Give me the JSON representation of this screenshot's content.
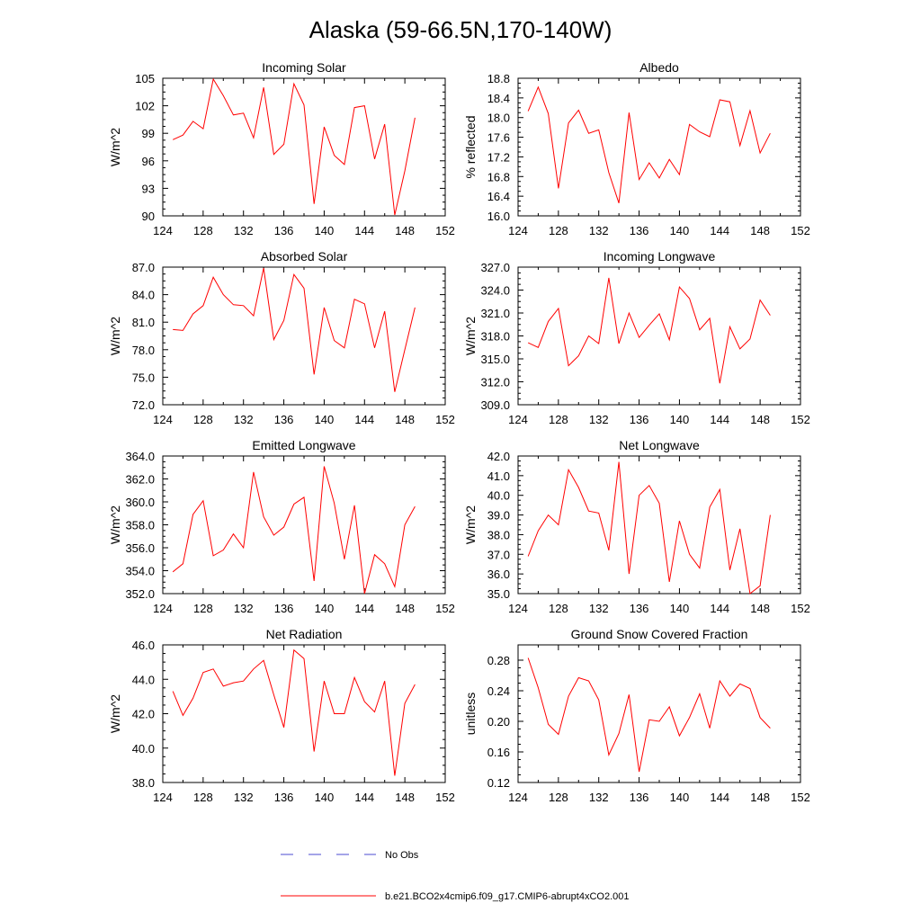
{
  "figure": {
    "title": "Alaska (59-66.5N,170-140W)"
  },
  "legend": {
    "obs_label": "No Obs",
    "obs_color": "#4b4bd0",
    "model_label": "b.e21.BCO2x4cmip6.f09_g17.CMIP6-abrupt4xCO2.001",
    "model_color": "#ff0000"
  },
  "chart_data": [
    {
      "type": "line",
      "title": "Incoming Solar",
      "ylabel": "W/m^2",
      "xlim": [
        124,
        152
      ],
      "ylim": [
        90,
        105
      ],
      "xticks": [
        124,
        128,
        132,
        136,
        140,
        144,
        148,
        152
      ],
      "yticks": [
        90,
        93,
        96,
        99,
        102,
        105
      ],
      "ydecimals": 0,
      "x": [
        125,
        126,
        127,
        128,
        129,
        130,
        131,
        132,
        133,
        134,
        135,
        136,
        137,
        138,
        139,
        140,
        141,
        142,
        143,
        144,
        145,
        146,
        147,
        148,
        149
      ],
      "series": [
        {
          "values": [
            98.3,
            98.8,
            100.3,
            99.5,
            104.9,
            103.1,
            101.0,
            101.2,
            98.5,
            104.0,
            96.7,
            97.8,
            104.4,
            102.1,
            91.3,
            99.7,
            96.6,
            95.6,
            101.8,
            102.0,
            96.2,
            100.0,
            90.1,
            94.9,
            100.7
          ]
        }
      ]
    },
    {
      "type": "line",
      "title": "Albedo",
      "ylabel": "% reflected",
      "xlim": [
        124,
        152
      ],
      "ylim": [
        16.0,
        18.8
      ],
      "xticks": [
        124,
        128,
        132,
        136,
        140,
        144,
        148,
        152
      ],
      "yticks": [
        16.0,
        16.4,
        16.8,
        17.2,
        17.6,
        18.0,
        18.4,
        18.8
      ],
      "ydecimals": 1,
      "x": [
        125,
        126,
        127,
        128,
        129,
        130,
        131,
        132,
        133,
        134,
        135,
        136,
        137,
        138,
        139,
        140,
        141,
        142,
        143,
        144,
        145,
        146,
        147,
        148,
        149
      ],
      "series": [
        {
          "values": [
            18.13,
            18.62,
            18.08,
            16.56,
            17.89,
            18.15,
            17.68,
            17.75,
            16.88,
            16.26,
            18.1,
            16.74,
            17.08,
            16.77,
            17.15,
            16.84,
            17.86,
            17.71,
            17.61,
            18.36,
            18.32,
            17.43,
            18.14,
            17.28,
            17.68
          ]
        }
      ]
    },
    {
      "type": "line",
      "title": "Absorbed Solar",
      "ylabel": "W/m^2",
      "xlim": [
        124,
        152
      ],
      "ylim": [
        72.0,
        87.0
      ],
      "xticks": [
        124,
        128,
        132,
        136,
        140,
        144,
        148,
        152
      ],
      "yticks": [
        72.0,
        75.0,
        78.0,
        81.0,
        84.0,
        87.0
      ],
      "ydecimals": 1,
      "x": [
        125,
        126,
        127,
        128,
        129,
        130,
        131,
        132,
        133,
        134,
        135,
        136,
        137,
        138,
        139,
        140,
        141,
        142,
        143,
        144,
        145,
        146,
        147,
        148,
        149
      ],
      "series": [
        {
          "values": [
            80.2,
            80.1,
            81.9,
            82.8,
            85.9,
            84.0,
            82.9,
            82.8,
            81.7,
            86.9,
            79.1,
            81.2,
            86.2,
            84.7,
            75.3,
            82.6,
            79.0,
            78.2,
            83.5,
            83.0,
            78.2,
            82.2,
            73.4,
            78.0,
            82.6
          ]
        }
      ]
    },
    {
      "type": "line",
      "title": "Incoming Longwave",
      "ylabel": "W/m^2",
      "xlim": [
        124,
        152
      ],
      "ylim": [
        309.0,
        327.0
      ],
      "xticks": [
        124,
        128,
        132,
        136,
        140,
        144,
        148,
        152
      ],
      "yticks": [
        309.0,
        312.0,
        315.0,
        318.0,
        321.0,
        324.0,
        327.0
      ],
      "ydecimals": 1,
      "x": [
        125,
        126,
        127,
        128,
        129,
        130,
        131,
        132,
        133,
        134,
        135,
        136,
        137,
        138,
        139,
        140,
        141,
        142,
        143,
        144,
        145,
        146,
        147,
        148,
        149
      ],
      "series": [
        {
          "values": [
            317.1,
            316.5,
            319.9,
            321.6,
            314.1,
            315.4,
            318.0,
            317.0,
            325.6,
            317.0,
            321.0,
            317.8,
            319.4,
            320.9,
            317.5,
            324.4,
            322.9,
            318.8,
            320.3,
            311.8,
            319.2,
            316.3,
            317.6,
            322.7,
            320.7
          ]
        }
      ]
    },
    {
      "type": "line",
      "title": "Emitted Longwave",
      "ylabel": "W/m^2",
      "xlim": [
        124,
        152
      ],
      "ylim": [
        352.0,
        364.0
      ],
      "xticks": [
        124,
        128,
        132,
        136,
        140,
        144,
        148,
        152
      ],
      "yticks": [
        352.0,
        354.0,
        356.0,
        358.0,
        360.0,
        362.0,
        364.0
      ],
      "ydecimals": 1,
      "x": [
        125,
        126,
        127,
        128,
        129,
        130,
        131,
        132,
        133,
        134,
        135,
        136,
        137,
        138,
        139,
        140,
        141,
        142,
        143,
        144,
        145,
        146,
        147,
        148,
        149
      ],
      "series": [
        {
          "values": [
            353.9,
            354.6,
            358.9,
            360.1,
            355.3,
            355.8,
            357.2,
            356.0,
            362.6,
            358.7,
            357.1,
            357.8,
            359.8,
            360.4,
            353.1,
            363.1,
            359.9,
            355.0,
            359.7,
            352.0,
            355.4,
            354.6,
            352.6,
            358.0,
            359.6
          ]
        }
      ]
    },
    {
      "type": "line",
      "title": "Net Longwave",
      "ylabel": "W/m^2",
      "xlim": [
        124,
        152
      ],
      "ylim": [
        35.0,
        42.0
      ],
      "xticks": [
        124,
        128,
        132,
        136,
        140,
        144,
        148,
        152
      ],
      "yticks": [
        35.0,
        36.0,
        37.0,
        38.0,
        39.0,
        40.0,
        41.0,
        42.0
      ],
      "ydecimals": 1,
      "x": [
        125,
        126,
        127,
        128,
        129,
        130,
        131,
        132,
        133,
        134,
        135,
        136,
        137,
        138,
        139,
        140,
        141,
        142,
        143,
        144,
        145,
        146,
        147,
        148,
        149
      ],
      "series": [
        {
          "values": [
            36.9,
            38.2,
            39.0,
            38.5,
            41.3,
            40.4,
            39.2,
            39.1,
            37.2,
            41.7,
            36.0,
            40.0,
            40.5,
            39.6,
            35.6,
            38.7,
            37.0,
            36.3,
            39.4,
            40.3,
            36.2,
            38.3,
            35.0,
            35.4,
            39.0
          ]
        }
      ]
    },
    {
      "type": "line",
      "title": "Net Radiation",
      "ylabel": "W/m^2",
      "xlim": [
        124,
        152
      ],
      "ylim": [
        38.0,
        46.0
      ],
      "xticks": [
        124,
        128,
        132,
        136,
        140,
        144,
        148,
        152
      ],
      "yticks": [
        38.0,
        40.0,
        42.0,
        44.0,
        46.0
      ],
      "ydecimals": 1,
      "x": [
        125,
        126,
        127,
        128,
        129,
        130,
        131,
        132,
        133,
        134,
        135,
        136,
        137,
        138,
        139,
        140,
        141,
        142,
        143,
        144,
        145,
        146,
        147,
        148,
        149
      ],
      "series": [
        {
          "values": [
            43.3,
            41.9,
            42.9,
            44.4,
            44.6,
            43.6,
            43.8,
            43.9,
            44.6,
            45.1,
            43.1,
            41.2,
            45.7,
            45.2,
            39.8,
            43.9,
            42.0,
            42.0,
            44.1,
            42.7,
            42.1,
            43.9,
            38.4,
            42.6,
            43.7
          ]
        }
      ]
    },
    {
      "type": "line",
      "title": "Ground Snow Covered Fraction",
      "ylabel": "unitless",
      "xlim": [
        124,
        152
      ],
      "ylim": [
        0.12,
        0.3
      ],
      "xticks": [
        124,
        128,
        132,
        136,
        140,
        144,
        148,
        152
      ],
      "yticks": [
        0.12,
        0.16,
        0.2,
        0.24,
        0.28
      ],
      "ydecimals": 2,
      "x": [
        125,
        126,
        127,
        128,
        129,
        130,
        131,
        132,
        133,
        134,
        135,
        136,
        137,
        138,
        139,
        140,
        141,
        142,
        143,
        144,
        145,
        146,
        147,
        148,
        149
      ],
      "series": [
        {
          "values": [
            0.283,
            0.244,
            0.196,
            0.183,
            0.233,
            0.257,
            0.253,
            0.228,
            0.156,
            0.184,
            0.235,
            0.134,
            0.202,
            0.2,
            0.219,
            0.181,
            0.205,
            0.236,
            0.191,
            0.253,
            0.233,
            0.249,
            0.243,
            0.205,
            0.191
          ]
        }
      ]
    }
  ]
}
